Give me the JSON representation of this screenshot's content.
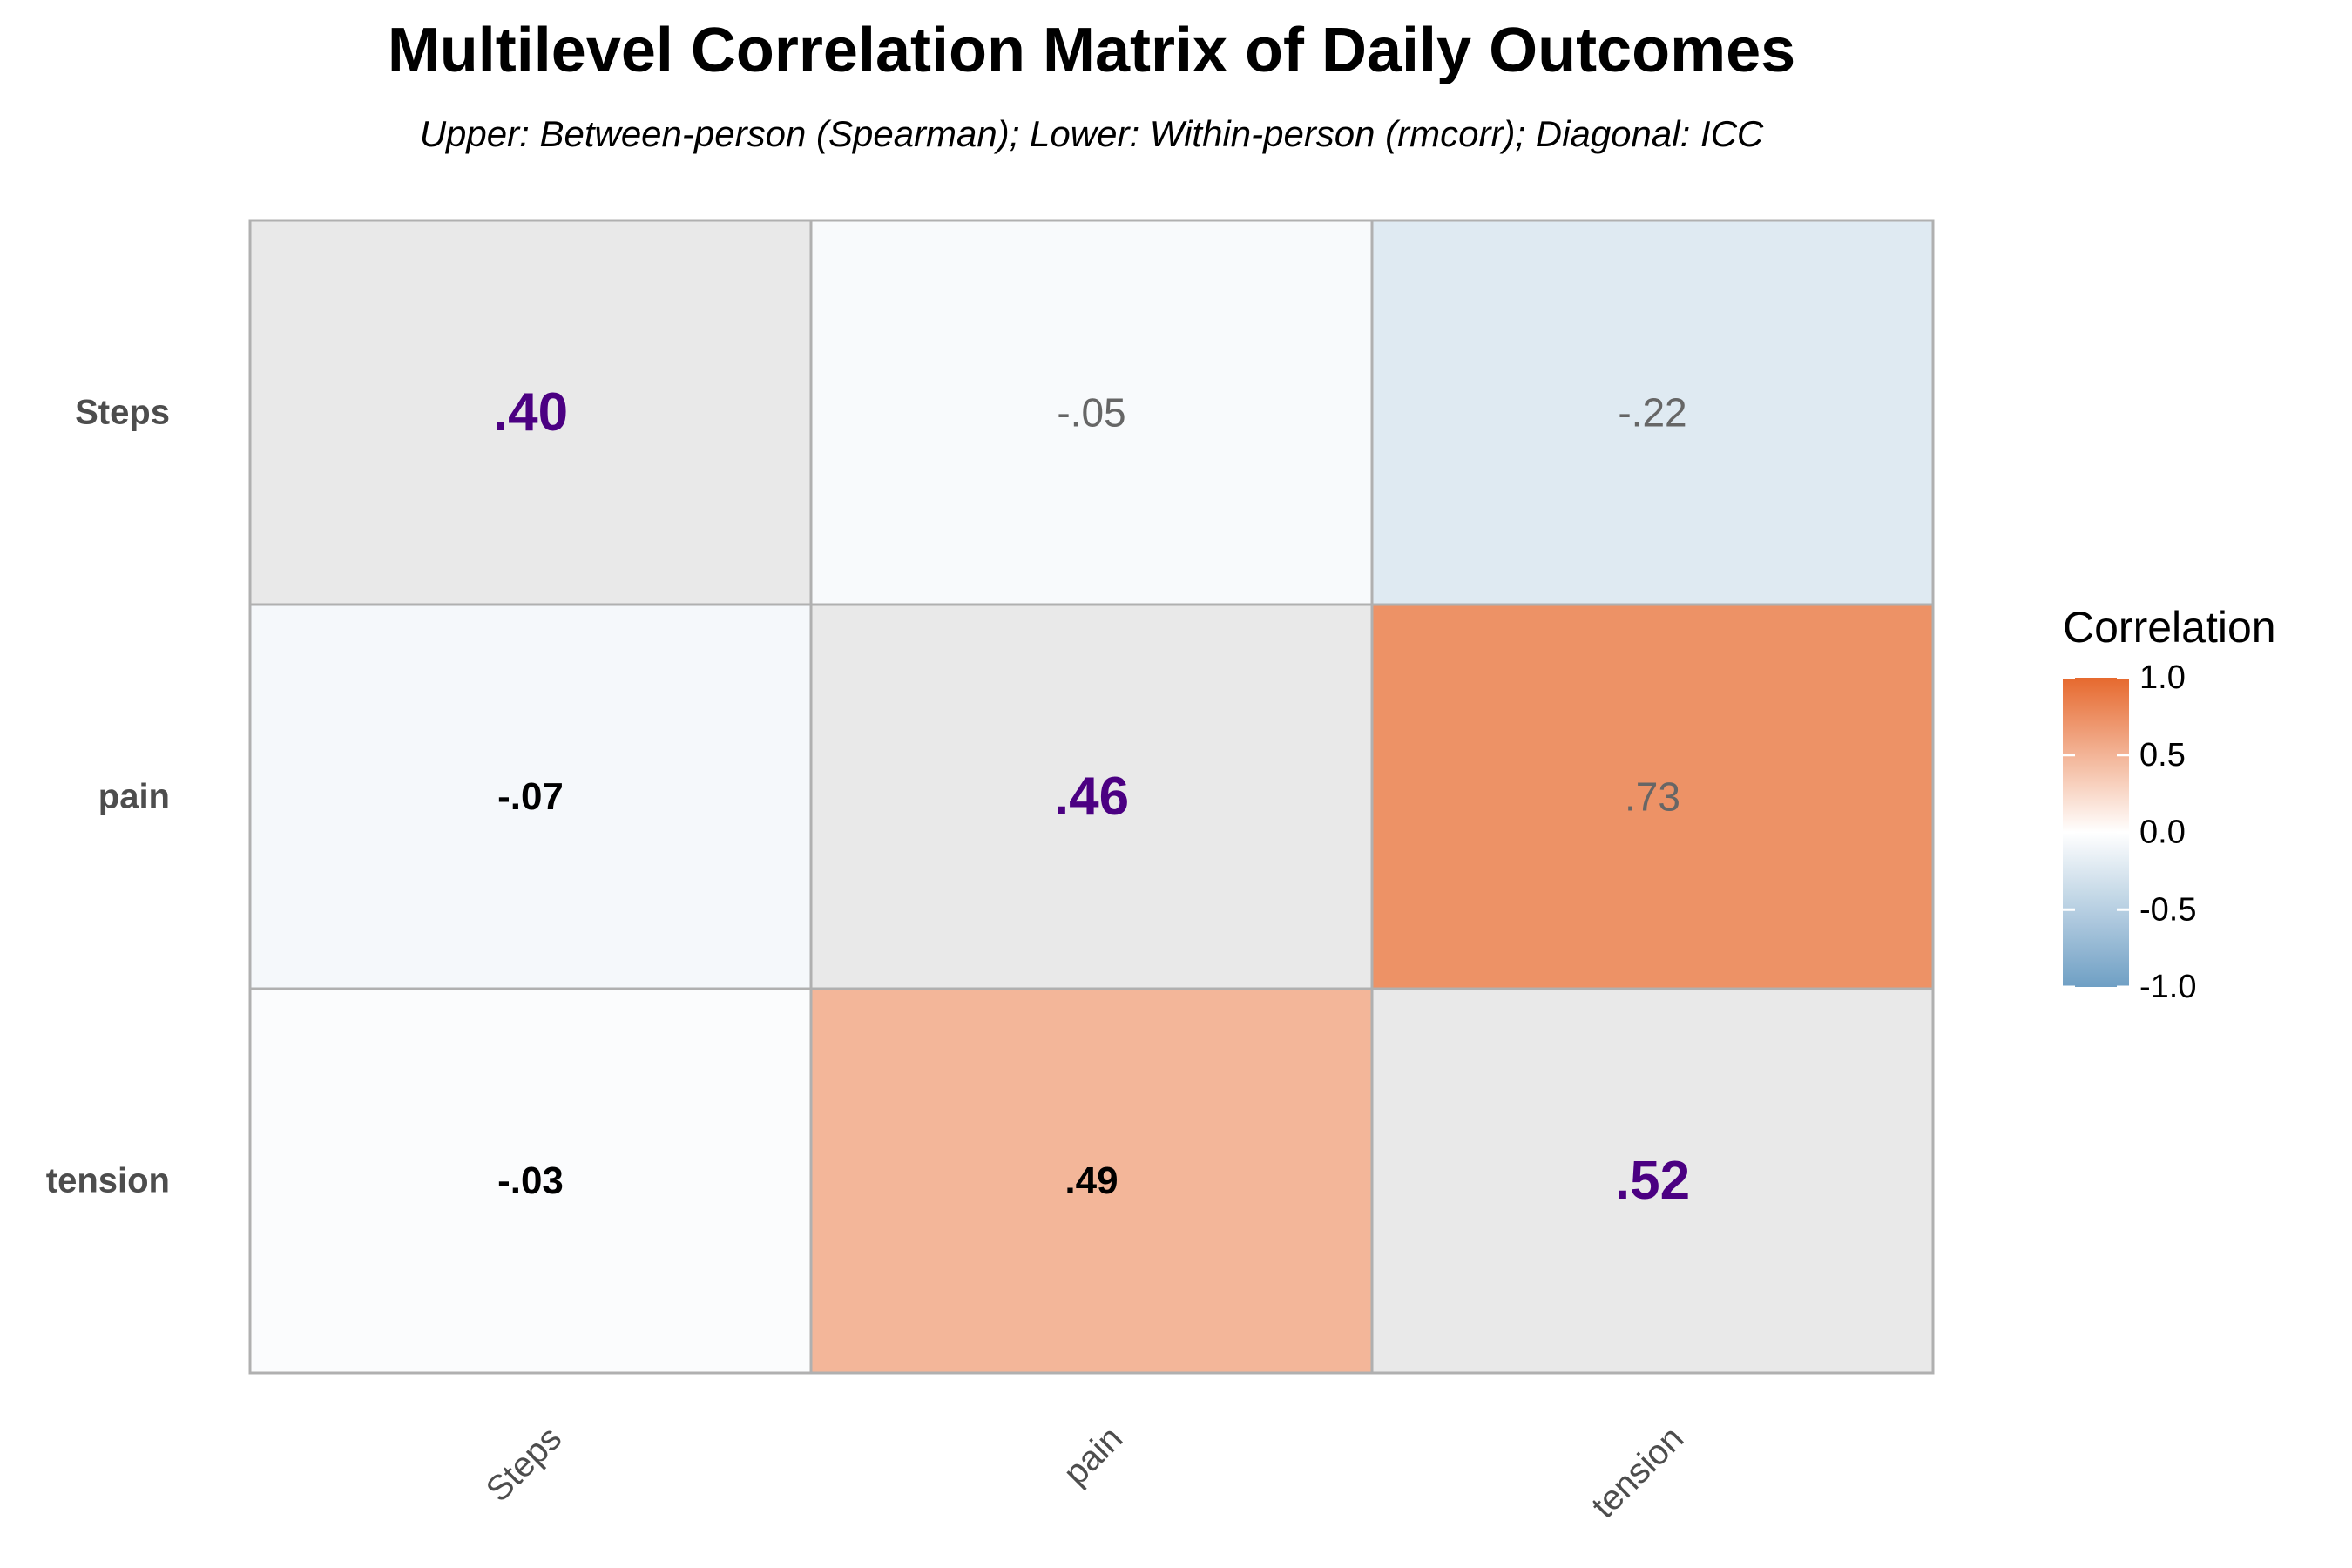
{
  "chart_data": {
    "type": "heatmap",
    "title": "Multilevel Correlation Matrix of Daily Outcomes",
    "subtitle": "Upper: Between-person (Spearman); Lower: Within-person (rmcorr); Diagonal: ICC",
    "rows": [
      "Steps",
      "pain",
      "tension"
    ],
    "columns": [
      "Steps",
      "pain",
      "tension"
    ],
    "cells": [
      {
        "row": "Steps",
        "col": "Steps",
        "value": 0.4,
        "label": ".40",
        "kind": "diagonal"
      },
      {
        "row": "Steps",
        "col": "pain",
        "value": -0.05,
        "label": "-.05",
        "kind": "upper"
      },
      {
        "row": "Steps",
        "col": "tension",
        "value": -0.22,
        "label": "-.22",
        "kind": "upper"
      },
      {
        "row": "pain",
        "col": "Steps",
        "value": -0.07,
        "label": "-.07",
        "kind": "lower"
      },
      {
        "row": "pain",
        "col": "pain",
        "value": 0.46,
        "label": ".46",
        "kind": "diagonal"
      },
      {
        "row": "pain",
        "col": "tension",
        "value": 0.73,
        "label": ".73",
        "kind": "upper"
      },
      {
        "row": "tension",
        "col": "Steps",
        "value": -0.03,
        "label": "-.03",
        "kind": "lower"
      },
      {
        "row": "tension",
        "col": "pain",
        "value": 0.49,
        "label": ".49",
        "kind": "lower"
      },
      {
        "row": "tension",
        "col": "tension",
        "value": 0.52,
        "label": ".52",
        "kind": "diagonal"
      }
    ],
    "legend": {
      "title": "Correlation",
      "range": [
        -1.0,
        1.0
      ],
      "ticks": [
        {
          "value": 1.0,
          "label": "1.0"
        },
        {
          "value": 0.5,
          "label": "0.5"
        },
        {
          "value": 0.0,
          "label": "0.0"
        },
        {
          "value": -0.5,
          "label": "-0.5"
        },
        {
          "value": -1.0,
          "label": "-1.0"
        }
      ],
      "placement": "right"
    },
    "colors": {
      "negative": "#6f9fc4",
      "mid": "#ffffff",
      "positive": "#e6692e",
      "diagonal_fill": "#e9e9e9",
      "diagonal_text": "#4b0082",
      "upper_text": "#666666",
      "lower_text": "#000000",
      "border": "#b0b0b0"
    }
  }
}
